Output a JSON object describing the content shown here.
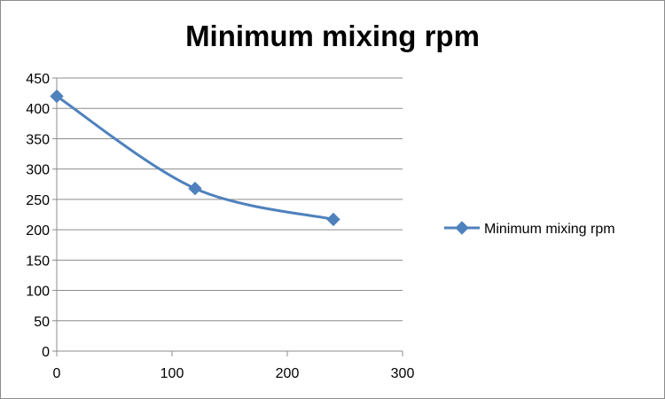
{
  "chart_data": {
    "type": "line",
    "title": "Minimum mixing rpm",
    "xlabel": "",
    "ylabel": "",
    "xlim": [
      0,
      300
    ],
    "ylim": [
      0,
      450
    ],
    "x_ticks": [
      "0",
      "100",
      "200",
      "300"
    ],
    "y_ticks": [
      "0",
      "50",
      "100",
      "150",
      "200",
      "250",
      "300",
      "350",
      "400",
      "450"
    ],
    "grid": "horizontal",
    "legend_position": "right",
    "smooth": true,
    "marker": "diamond",
    "series": [
      {
        "name": "Minimum mixing rpm",
        "color": "#4f81bd",
        "x": [
          0,
          120,
          240
        ],
        "y": [
          420,
          268,
          217
        ]
      }
    ]
  }
}
